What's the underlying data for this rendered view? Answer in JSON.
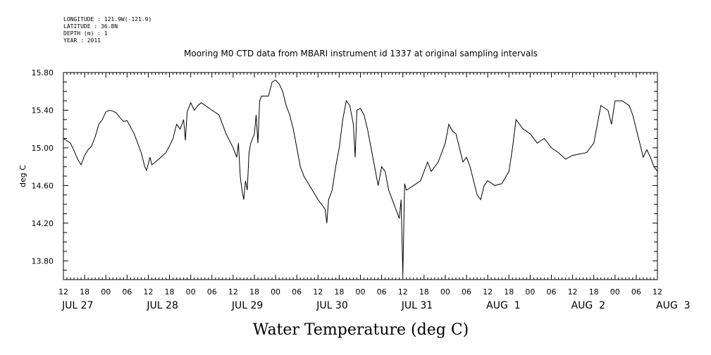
{
  "header": {
    "longitude": "LONGITUDE : 121.9W(-121.9)",
    "latitude": "LATITUDE : 36.8N",
    "depth": "DEPTH (m) : 1",
    "year": "YEAR : 2011"
  },
  "chart_data": {
    "type": "line",
    "title": "Mooring M0 CTD data from MBARI instrument id 1337 at original sampling intervals",
    "xlabel": "Water Temperature (deg C)",
    "ylabel": "deg C",
    "xlim": [
      "2011-07-27 12:00",
      "2011-08-03 12:00"
    ],
    "ylim": [
      13.6,
      15.8
    ],
    "yticks": [
      "15.80",
      "15.40",
      "15.00",
      "14.60",
      "14.20",
      "13.80"
    ],
    "hour_labels": [
      "12",
      "18",
      "00",
      "06",
      "12",
      "18",
      "00",
      "06",
      "12",
      "18",
      "00",
      "06",
      "12",
      "18",
      "00",
      "06",
      "12",
      "18",
      "00",
      "06",
      "12",
      "18",
      "00",
      "06",
      "12",
      "18",
      "00",
      "06",
      "12"
    ],
    "date_labels": [
      "JUL 27",
      "JUL 28",
      "JUL 29",
      "JUL 30",
      "JUL 31",
      "AUG  1",
      "AUG  2",
      "AUG  3"
    ],
    "grid": false,
    "series": [
      {
        "color": "#000000",
        "points": [
          [
            "2011-07-27 12:00",
            15.1
          ],
          [
            "2011-07-27 14:00",
            15.05
          ],
          [
            "2011-07-27 15:00",
            14.97
          ],
          [
            "2011-07-27 16:00",
            14.88
          ],
          [
            "2011-07-27 17:00",
            14.82
          ],
          [
            "2011-07-27 18:00",
            14.92
          ],
          [
            "2011-07-27 19:00",
            14.98
          ],
          [
            "2011-07-27 20:00",
            15.02
          ],
          [
            "2011-07-27 21:00",
            15.12
          ],
          [
            "2011-07-27 22:00",
            15.25
          ],
          [
            "2011-07-27 23:00",
            15.3
          ],
          [
            "2011-07-28 00:00",
            15.38
          ],
          [
            "2011-07-28 01:00",
            15.4
          ],
          [
            "2011-07-28 02:00",
            15.39
          ],
          [
            "2011-07-28 03:00",
            15.37
          ],
          [
            "2011-07-28 04:00",
            15.32
          ],
          [
            "2011-07-28 05:00",
            15.28
          ],
          [
            "2011-07-28 06:00",
            15.29
          ],
          [
            "2011-07-28 07:00",
            15.22
          ],
          [
            "2011-07-28 08:00",
            15.15
          ],
          [
            "2011-07-28 09:00",
            15.05
          ],
          [
            "2011-07-28 10:00",
            14.95
          ],
          [
            "2011-07-28 11:00",
            14.8
          ],
          [
            "2011-07-28 11:30",
            14.76
          ],
          [
            "2011-07-28 12:30",
            14.9
          ],
          [
            "2011-07-28 13:00",
            14.82
          ],
          [
            "2011-07-28 14:00",
            14.85
          ],
          [
            "2011-07-28 15:00",
            14.88
          ],
          [
            "2011-07-28 17:00",
            14.95
          ],
          [
            "2011-07-28 18:00",
            15.02
          ],
          [
            "2011-07-28 19:00",
            15.1
          ],
          [
            "2011-07-28 20:00",
            15.25
          ],
          [
            "2011-07-28 21:00",
            15.2
          ],
          [
            "2011-07-28 22:00",
            15.3
          ],
          [
            "2011-07-28 22:30",
            15.08
          ],
          [
            "2011-07-28 23:00",
            15.38
          ],
          [
            "2011-07-29 00:00",
            15.48
          ],
          [
            "2011-07-29 01:00",
            15.4
          ],
          [
            "2011-07-29 02:00",
            15.45
          ],
          [
            "2011-07-29 03:00",
            15.48
          ],
          [
            "2011-07-29 06:00",
            15.4
          ],
          [
            "2011-07-29 08:00",
            15.35
          ],
          [
            "2011-07-29 10:00",
            15.15
          ],
          [
            "2011-07-29 12:00",
            15.0
          ],
          [
            "2011-07-29 13:00",
            14.9
          ],
          [
            "2011-07-29 13:30",
            15.05
          ],
          [
            "2011-07-29 14:00",
            14.7
          ],
          [
            "2011-07-29 14:30",
            14.55
          ],
          [
            "2011-07-29 15:00",
            14.45
          ],
          [
            "2011-07-29 15:30",
            14.65
          ],
          [
            "2011-07-29 16:00",
            14.55
          ],
          [
            "2011-07-29 16:30",
            14.95
          ],
          [
            "2011-07-29 17:00",
            15.05
          ],
          [
            "2011-07-29 18:00",
            15.15
          ],
          [
            "2011-07-29 18:30",
            15.35
          ],
          [
            "2011-07-29 19:00",
            15.05
          ],
          [
            "2011-07-29 19:30",
            15.5
          ],
          [
            "2011-07-29 20:00",
            15.55
          ],
          [
            "2011-07-29 22:00",
            15.55
          ],
          [
            "2011-07-29 23:00",
            15.7
          ],
          [
            "2011-07-30 00:00",
            15.72
          ],
          [
            "2011-07-30 01:00",
            15.68
          ],
          [
            "2011-07-30 02:00",
            15.6
          ],
          [
            "2011-07-30 03:00",
            15.45
          ],
          [
            "2011-07-30 04:00",
            15.35
          ],
          [
            "2011-07-30 05:00",
            15.2
          ],
          [
            "2011-07-30 06:00",
            15.0
          ],
          [
            "2011-07-30 07:00",
            14.8
          ],
          [
            "2011-07-30 08:00",
            14.7
          ],
          [
            "2011-07-30 12:00",
            14.45
          ],
          [
            "2011-07-30 14:00",
            14.35
          ],
          [
            "2011-07-30 14:30",
            14.2
          ],
          [
            "2011-07-30 15:00",
            14.45
          ],
          [
            "2011-07-30 16:00",
            14.55
          ],
          [
            "2011-07-30 17:00",
            14.8
          ],
          [
            "2011-07-30 18:00",
            15.0
          ],
          [
            "2011-07-30 19:00",
            15.3
          ],
          [
            "2011-07-30 20:00",
            15.5
          ],
          [
            "2011-07-30 21:00",
            15.45
          ],
          [
            "2011-07-30 22:00",
            15.25
          ],
          [
            "2011-07-30 22:30",
            14.9
          ],
          [
            "2011-07-30 23:00",
            15.4
          ],
          [
            "2011-07-31 00:00",
            15.42
          ],
          [
            "2011-07-31 01:00",
            15.35
          ],
          [
            "2011-07-31 02:00",
            15.2
          ],
          [
            "2011-07-31 03:00",
            15.0
          ],
          [
            "2011-07-31 04:00",
            14.8
          ],
          [
            "2011-07-31 05:00",
            14.6
          ],
          [
            "2011-07-31 06:00",
            14.8
          ],
          [
            "2011-07-31 07:00",
            14.75
          ],
          [
            "2011-07-31 08:00",
            14.55
          ],
          [
            "2011-07-31 09:00",
            14.45
          ],
          [
            "2011-07-31 10:00",
            14.35
          ],
          [
            "2011-07-31 11:00",
            14.25
          ],
          [
            "2011-07-31 11:30",
            14.45
          ],
          [
            "2011-07-31 12:00",
            13.65
          ],
          [
            "2011-07-31 12:30",
            14.62
          ],
          [
            "2011-07-31 13:00",
            14.55
          ],
          [
            "2011-07-31 15:00",
            14.6
          ],
          [
            "2011-07-31 17:00",
            14.65
          ],
          [
            "2011-07-31 18:00",
            14.75
          ],
          [
            "2011-07-31 19:00",
            14.85
          ],
          [
            "2011-07-31 20:00",
            14.75
          ],
          [
            "2011-07-31 22:00",
            14.85
          ],
          [
            "2011-08-01 00:00",
            15.05
          ],
          [
            "2011-08-01 01:00",
            15.25
          ],
          [
            "2011-08-01 02:00",
            15.18
          ],
          [
            "2011-08-01 03:00",
            15.15
          ],
          [
            "2011-08-01 04:00",
            15.0
          ],
          [
            "2011-08-01 05:00",
            14.85
          ],
          [
            "2011-08-01 06:00",
            14.9
          ],
          [
            "2011-08-01 07:00",
            14.8
          ],
          [
            "2011-08-01 08:00",
            14.65
          ],
          [
            "2011-08-01 09:00",
            14.5
          ],
          [
            "2011-08-01 10:00",
            14.45
          ],
          [
            "2011-08-01 11:00",
            14.6
          ],
          [
            "2011-08-01 12:00",
            14.65
          ],
          [
            "2011-08-01 14:00",
            14.6
          ],
          [
            "2011-08-01 16:00",
            14.62
          ],
          [
            "2011-08-01 18:00",
            14.75
          ],
          [
            "2011-08-01 19:00",
            15.0
          ],
          [
            "2011-08-01 20:00",
            15.3
          ],
          [
            "2011-08-01 21:00",
            15.25
          ],
          [
            "2011-08-01 22:00",
            15.2
          ],
          [
            "2011-08-02 00:00",
            15.15
          ],
          [
            "2011-08-02 02:00",
            15.05
          ],
          [
            "2011-08-02 04:00",
            15.1
          ],
          [
            "2011-08-02 06:00",
            15.0
          ],
          [
            "2011-08-02 08:00",
            14.95
          ],
          [
            "2011-08-02 10:00",
            14.88
          ],
          [
            "2011-08-02 12:00",
            14.92
          ],
          [
            "2011-08-02 16:00",
            14.95
          ],
          [
            "2011-08-02 18:00",
            15.05
          ],
          [
            "2011-08-02 19:00",
            15.25
          ],
          [
            "2011-08-02 20:00",
            15.45
          ],
          [
            "2011-08-02 22:00",
            15.4
          ],
          [
            "2011-08-02 23:00",
            15.25
          ],
          [
            "2011-08-03 00:00",
            15.5
          ],
          [
            "2011-08-03 02:00",
            15.5
          ],
          [
            "2011-08-03 04:00",
            15.45
          ],
          [
            "2011-08-03 05:00",
            15.35
          ],
          [
            "2011-08-03 06:00",
            15.2
          ],
          [
            "2011-08-03 07:00",
            15.05
          ],
          [
            "2011-08-03 08:00",
            14.9
          ],
          [
            "2011-08-03 09:00",
            14.98
          ],
          [
            "2011-08-03 10:00",
            14.9
          ],
          [
            "2011-08-03 11:00",
            14.8
          ],
          [
            "2011-08-03 12:00",
            14.75
          ]
        ]
      }
    ]
  }
}
